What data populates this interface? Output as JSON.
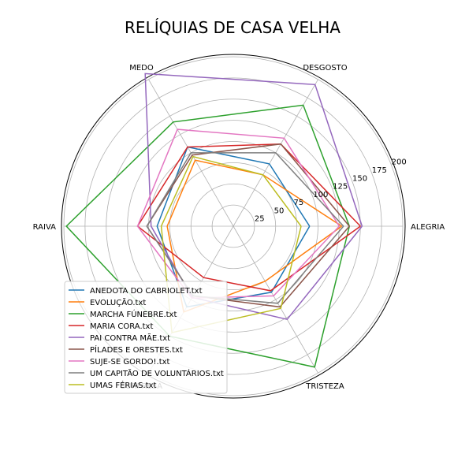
{
  "chart_data": {
    "type": "radar",
    "title": "RELÍQUIAS DE CASA VELHA",
    "axes": [
      "ALEGRIA",
      "DESGOSTO",
      "MEDO",
      "RAIVA",
      "SURPRESA",
      "TRISTEZA"
    ],
    "radial_ticks": [
      "25",
      "50",
      "75",
      "100",
      "125",
      "150",
      "175",
      "200"
    ],
    "rlim": [
      0,
      200
    ],
    "grid": true,
    "legend_position": "lower-left",
    "series": [
      {
        "name": "ANEDOTA DO CABRIOLET.txt",
        "color": "#1f77b4",
        "values": [
          90,
          85,
          108,
          90,
          110,
          90
        ]
      },
      {
        "name": "EVOLUÇÃO.txt",
        "color": "#ff7f0e",
        "values": [
          128,
          70,
          90,
          78,
          117,
          75
        ]
      },
      {
        "name": "MARCHA FÚNEBRE.txt",
        "color": "#2ca02c",
        "values": [
          137,
          165,
          142,
          197,
          150,
          192
        ]
      },
      {
        "name": "MARIA CORA.txt",
        "color": "#d62728",
        "values": [
          150,
          112,
          108,
          113,
          70,
          88
        ]
      },
      {
        "name": "PAI CONTRA MÃE.txt",
        "color": "#9467bd",
        "values": [
          152,
          193,
          208,
          97,
          97,
          127
        ]
      },
      {
        "name": "PÍLADES E ORESTES.txt",
        "color": "#8c564b",
        "values": [
          137,
          112,
          97,
          102,
          95,
          110
        ]
      },
      {
        "name": "SUJE-SE GORDO!.txt",
        "color": "#e377c2",
        "values": [
          125,
          120,
          132,
          113,
          98,
          95
        ]
      },
      {
        "name": "UM CAPITÃO DE VOLUNTÁRIOS.txt",
        "color": "#7f7f7f",
        "values": [
          130,
          100,
          100,
          102,
          95,
          105
        ]
      },
      {
        "name": "UMAS FÉRIAS.txt",
        "color": "#bcbd22",
        "values": [
          80,
          70,
          95,
          85,
          145,
          112
        ]
      }
    ]
  }
}
